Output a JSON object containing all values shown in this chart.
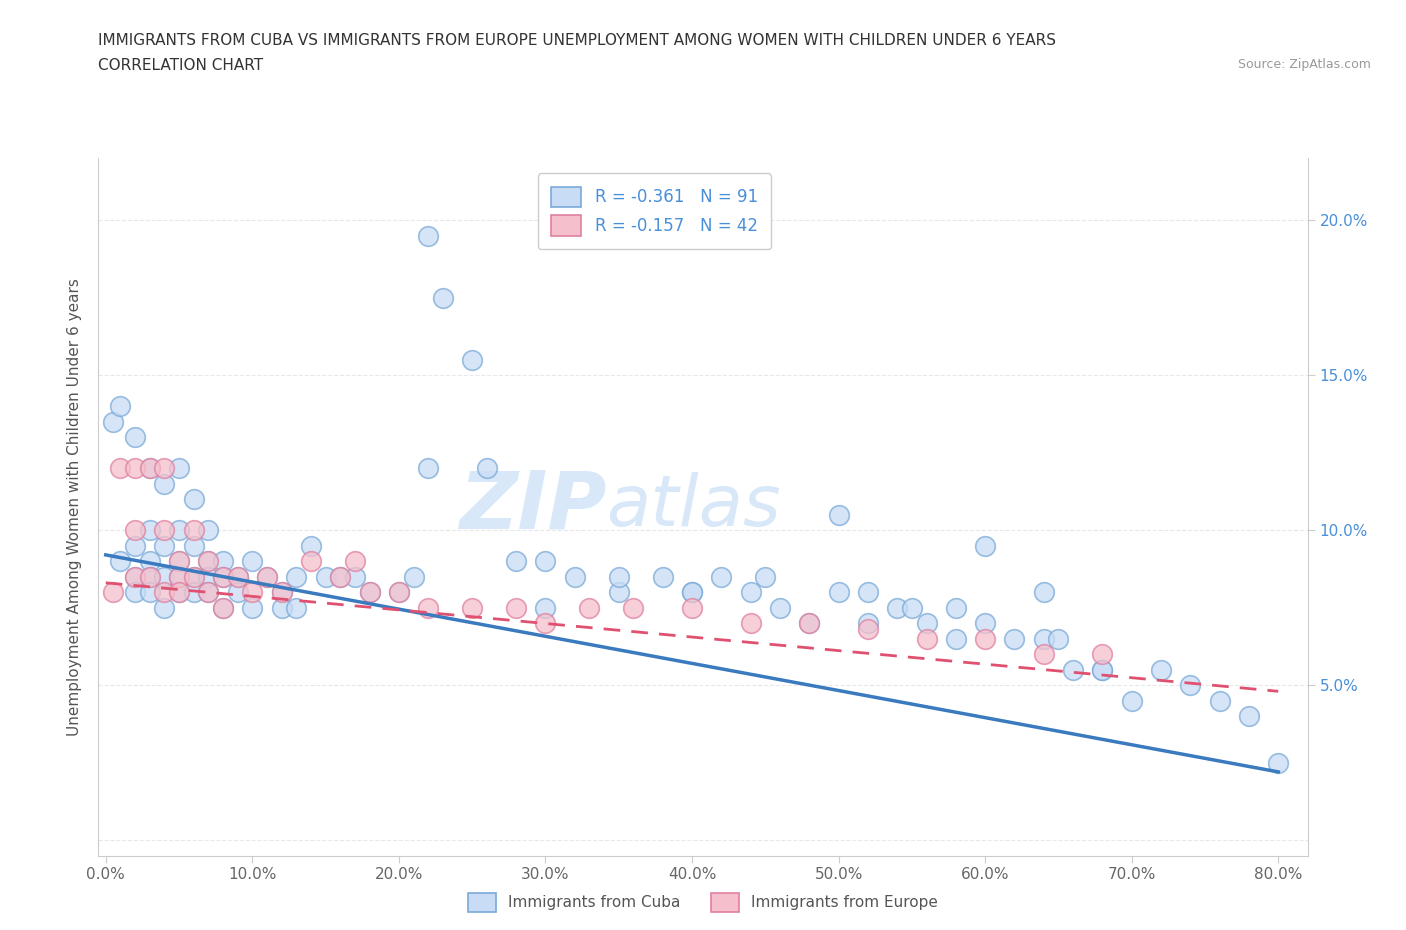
{
  "title_line1": "IMMIGRANTS FROM CUBA VS IMMIGRANTS FROM EUROPE UNEMPLOYMENT AMONG WOMEN WITH CHILDREN UNDER 6 YEARS",
  "title_line2": "CORRELATION CHART",
  "source_text": "Source: ZipAtlas.com",
  "ylabel": "Unemployment Among Women with Children Under 6 years",
  "xlim": [
    -0.005,
    0.82
  ],
  "ylim": [
    -0.005,
    0.22
  ],
  "xticks": [
    0.0,
    0.1,
    0.2,
    0.3,
    0.4,
    0.5,
    0.6,
    0.7,
    0.8
  ],
  "xticklabels": [
    "0.0%",
    "10.0%",
    "20.0%",
    "30.0%",
    "40.0%",
    "50.0%",
    "60.0%",
    "70.0%",
    "80.0%"
  ],
  "yticks_left": [
    0.0,
    0.05,
    0.1,
    0.15,
    0.2
  ],
  "yticklabels_left": [
    "",
    "",
    "",
    "",
    ""
  ],
  "right_yticks": [
    0.05,
    0.1,
    0.15,
    0.2
  ],
  "right_yticklabels": [
    "5.0%",
    "10.0%",
    "15.0%",
    "20.0%"
  ],
  "legend_cuba_R": "R = -0.361",
  "legend_cuba_N": "N = 91",
  "legend_europe_R": "R = -0.157",
  "legend_europe_N": "N = 42",
  "cuba_fill_color": "#c8dcf5",
  "cuba_edge_color": "#7aaad8",
  "europe_fill_color": "#f5c0cc",
  "europe_edge_color": "#e080a0",
  "cuba_line_color": "#3a7abf",
  "europe_line_color": "#e05070",
  "watermark_Z": "ZIP",
  "watermark_atlas": "atlas",
  "watermark_color": "#d8e8f8",
  "background_color": "#ffffff",
  "grid_color": "#e8e8e8",
  "cuba_x": [
    0.005,
    0.01,
    0.01,
    0.02,
    0.02,
    0.02,
    0.02,
    0.03,
    0.03,
    0.03,
    0.03,
    0.03,
    0.04,
    0.04,
    0.04,
    0.04,
    0.05,
    0.05,
    0.05,
    0.05,
    0.05,
    0.06,
    0.06,
    0.06,
    0.06,
    0.07,
    0.07,
    0.07,
    0.07,
    0.08,
    0.08,
    0.08,
    0.09,
    0.09,
    0.1,
    0.1,
    0.11,
    0.12,
    0.12,
    0.13,
    0.13,
    0.14,
    0.15,
    0.16,
    0.17,
    0.18,
    0.2,
    0.21,
    0.22,
    0.23,
    0.25,
    0.26,
    0.28,
    0.3,
    0.32,
    0.35,
    0.38,
    0.4,
    0.42,
    0.44,
    0.46,
    0.48,
    0.5,
    0.52,
    0.54,
    0.56,
    0.58,
    0.6,
    0.62,
    0.64,
    0.66,
    0.68,
    0.22,
    0.3,
    0.35,
    0.4,
    0.45,
    0.5,
    0.52,
    0.55,
    0.58,
    0.6,
    0.65,
    0.68,
    0.7,
    0.72,
    0.74,
    0.76,
    0.78,
    0.8,
    0.64
  ],
  "cuba_y": [
    0.135,
    0.14,
    0.09,
    0.13,
    0.095,
    0.085,
    0.08,
    0.12,
    0.1,
    0.09,
    0.085,
    0.08,
    0.115,
    0.095,
    0.085,
    0.075,
    0.12,
    0.1,
    0.09,
    0.085,
    0.08,
    0.11,
    0.095,
    0.085,
    0.08,
    0.1,
    0.09,
    0.085,
    0.08,
    0.09,
    0.085,
    0.075,
    0.085,
    0.08,
    0.09,
    0.075,
    0.085,
    0.08,
    0.075,
    0.085,
    0.075,
    0.095,
    0.085,
    0.085,
    0.085,
    0.08,
    0.08,
    0.085,
    0.195,
    0.175,
    0.155,
    0.12,
    0.09,
    0.075,
    0.085,
    0.08,
    0.085,
    0.08,
    0.085,
    0.08,
    0.075,
    0.07,
    0.08,
    0.07,
    0.075,
    0.07,
    0.065,
    0.07,
    0.065,
    0.065,
    0.055,
    0.055,
    0.12,
    0.09,
    0.085,
    0.08,
    0.085,
    0.105,
    0.08,
    0.075,
    0.075,
    0.095,
    0.065,
    0.055,
    0.045,
    0.055,
    0.05,
    0.045,
    0.04,
    0.025,
    0.08
  ],
  "europe_x": [
    0.005,
    0.01,
    0.02,
    0.02,
    0.02,
    0.03,
    0.03,
    0.04,
    0.04,
    0.04,
    0.05,
    0.05,
    0.05,
    0.06,
    0.06,
    0.07,
    0.07,
    0.08,
    0.08,
    0.09,
    0.1,
    0.11,
    0.12,
    0.14,
    0.16,
    0.17,
    0.18,
    0.2,
    0.22,
    0.25,
    0.28,
    0.3,
    0.33,
    0.36,
    0.4,
    0.44,
    0.48,
    0.52,
    0.56,
    0.6,
    0.64,
    0.68
  ],
  "europe_y": [
    0.08,
    0.12,
    0.12,
    0.1,
    0.085,
    0.12,
    0.085,
    0.12,
    0.1,
    0.08,
    0.09,
    0.085,
    0.08,
    0.1,
    0.085,
    0.09,
    0.08,
    0.085,
    0.075,
    0.085,
    0.08,
    0.085,
    0.08,
    0.09,
    0.085,
    0.09,
    0.08,
    0.08,
    0.075,
    0.075,
    0.075,
    0.07,
    0.075,
    0.075,
    0.075,
    0.07,
    0.07,
    0.068,
    0.065,
    0.065,
    0.06,
    0.06
  ],
  "cuba_trend_x": [
    0.0,
    0.8
  ],
  "cuba_trend_y": [
    0.092,
    0.022
  ],
  "europe_trend_x": [
    0.0,
    0.8
  ],
  "europe_trend_y": [
    0.083,
    0.048
  ]
}
